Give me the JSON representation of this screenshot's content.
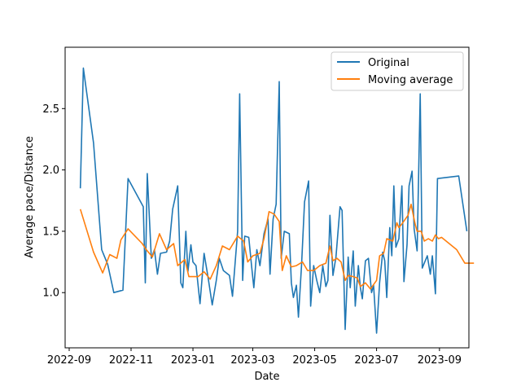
{
  "chart_data": {
    "type": "line",
    "title": "",
    "xlabel": "Date",
    "ylabel": "Average pace/Distance",
    "x_type": "date",
    "xlim": [
      "2022-08-28",
      "2023-09-30"
    ],
    "ylim": [
      0.55,
      3.0
    ],
    "xticks": [
      {
        "date": "2022-09-01",
        "label": "2022-09"
      },
      {
        "date": "2022-11-01",
        "label": "2022-11"
      },
      {
        "date": "2023-01-01",
        "label": "2023-01"
      },
      {
        "date": "2023-03-01",
        "label": "2023-03"
      },
      {
        "date": "2023-05-01",
        "label": "2023-05"
      },
      {
        "date": "2023-07-01",
        "label": "2023-07"
      },
      {
        "date": "2023-09-01",
        "label": "2023-09"
      }
    ],
    "yticks": [
      {
        "value": 1.0,
        "label": "1.0"
      },
      {
        "value": 1.5,
        "label": "1.5"
      },
      {
        "value": 2.0,
        "label": "2.0"
      },
      {
        "value": 2.5,
        "label": "2.5"
      }
    ],
    "grid": false,
    "legend": "top-right",
    "series": [
      {
        "name": "Original",
        "color": "#1f77b4",
        "points": [
          [
            "2022-09-12",
            1.85
          ],
          [
            "2022-09-15",
            2.83
          ],
          [
            "2022-09-25",
            2.22
          ],
          [
            "2022-10-03",
            1.35
          ],
          [
            "2022-10-09",
            1.23
          ],
          [
            "2022-10-15",
            1.0
          ],
          [
            "2022-10-24",
            1.02
          ],
          [
            "2022-10-29",
            1.93
          ],
          [
            "2022-11-13",
            1.7
          ],
          [
            "2022-11-15",
            1.08
          ],
          [
            "2022-11-17",
            1.97
          ],
          [
            "2022-11-21",
            1.28
          ],
          [
            "2022-11-24",
            1.35
          ],
          [
            "2022-11-27",
            1.15
          ],
          [
            "2022-11-30",
            1.32
          ],
          [
            "2022-12-06",
            1.33
          ],
          [
            "2022-12-09",
            1.42
          ],
          [
            "2022-12-12",
            1.68
          ],
          [
            "2022-12-17",
            1.87
          ],
          [
            "2022-12-20",
            1.08
          ],
          [
            "2022-12-22",
            1.04
          ],
          [
            "2022-12-25",
            1.5
          ],
          [
            "2022-12-27",
            1.17
          ],
          [
            "2022-12-30",
            1.39
          ],
          [
            "2023-01-01",
            1.25
          ],
          [
            "2023-01-04",
            1.22
          ],
          [
            "2023-01-08",
            0.91
          ],
          [
            "2023-01-12",
            1.32
          ],
          [
            "2023-01-16",
            1.12
          ],
          [
            "2023-01-20",
            0.9
          ],
          [
            "2023-01-24",
            1.1
          ],
          [
            "2023-01-27",
            1.28
          ],
          [
            "2023-01-31",
            1.18
          ],
          [
            "2023-02-06",
            1.14
          ],
          [
            "2023-02-09",
            0.97
          ],
          [
            "2023-02-14",
            1.5
          ],
          [
            "2023-02-16",
            2.62
          ],
          [
            "2023-02-19",
            1.1
          ],
          [
            "2023-02-21",
            1.46
          ],
          [
            "2023-02-25",
            1.45
          ],
          [
            "2023-02-28",
            1.2
          ],
          [
            "2023-03-02",
            1.04
          ],
          [
            "2023-03-05",
            1.35
          ],
          [
            "2023-03-08",
            1.22
          ],
          [
            "2023-03-12",
            1.48
          ],
          [
            "2023-03-16",
            1.6
          ],
          [
            "2023-03-18",
            1.15
          ],
          [
            "2023-03-21",
            1.6
          ],
          [
            "2023-03-24",
            1.72
          ],
          [
            "2023-03-27",
            2.72
          ],
          [
            "2023-03-29",
            1.28
          ],
          [
            "2023-04-01",
            1.5
          ],
          [
            "2023-04-06",
            1.48
          ],
          [
            "2023-04-08",
            1.08
          ],
          [
            "2023-04-10",
            0.96
          ],
          [
            "2023-04-13",
            1.06
          ],
          [
            "2023-04-15",
            0.8
          ],
          [
            "2023-04-18",
            1.22
          ],
          [
            "2023-04-21",
            1.74
          ],
          [
            "2023-04-25",
            1.91
          ],
          [
            "2023-04-27",
            0.89
          ],
          [
            "2023-04-30",
            1.22
          ],
          [
            "2023-05-03",
            1.1
          ],
          [
            "2023-05-06",
            1.0
          ],
          [
            "2023-05-09",
            1.22
          ],
          [
            "2023-05-12",
            1.05
          ],
          [
            "2023-05-14",
            1.1
          ],
          [
            "2023-05-16",
            1.63
          ],
          [
            "2023-05-19",
            1.14
          ],
          [
            "2023-05-22",
            1.29
          ],
          [
            "2023-05-26",
            1.7
          ],
          [
            "2023-05-28",
            1.67
          ],
          [
            "2023-05-31",
            0.7
          ],
          [
            "2023-06-03",
            1.29
          ],
          [
            "2023-06-05",
            1.04
          ],
          [
            "2023-06-08",
            1.34
          ],
          [
            "2023-06-10",
            0.89
          ],
          [
            "2023-06-13",
            1.22
          ],
          [
            "2023-06-15",
            1.04
          ],
          [
            "2023-06-17",
            0.95
          ],
          [
            "2023-06-20",
            1.26
          ],
          [
            "2023-06-23",
            1.28
          ],
          [
            "2023-06-26",
            1.0
          ],
          [
            "2023-06-28",
            1.06
          ],
          [
            "2023-07-01",
            0.67
          ],
          [
            "2023-07-04",
            1.08
          ],
          [
            "2023-07-07",
            1.33
          ],
          [
            "2023-07-09",
            1.26
          ],
          [
            "2023-07-11",
            0.96
          ],
          [
            "2023-07-14",
            1.53
          ],
          [
            "2023-07-16",
            1.3
          ],
          [
            "2023-07-18",
            1.87
          ],
          [
            "2023-07-20",
            1.37
          ],
          [
            "2023-07-23",
            1.44
          ],
          [
            "2023-07-26",
            1.87
          ],
          [
            "2023-07-28",
            1.09
          ],
          [
            "2023-07-31",
            1.39
          ],
          [
            "2023-08-02",
            1.87
          ],
          [
            "2023-08-05",
            1.99
          ],
          [
            "2023-08-07",
            1.52
          ],
          [
            "2023-08-10",
            1.34
          ],
          [
            "2023-08-13",
            2.62
          ],
          [
            "2023-08-15",
            1.2
          ],
          [
            "2023-08-20",
            1.3
          ],
          [
            "2023-08-23",
            1.15
          ],
          [
            "2023-08-25",
            1.3
          ],
          [
            "2023-08-28",
            0.99
          ],
          [
            "2023-08-30",
            1.93
          ],
          [
            "2023-09-20",
            1.95
          ],
          [
            "2023-09-28",
            1.5
          ]
        ]
      },
      {
        "name": "Moving average",
        "color": "#ff7f0e",
        "points": [
          [
            "2022-09-12",
            1.68
          ],
          [
            "2022-09-25",
            1.33
          ],
          [
            "2022-10-04",
            1.16
          ],
          [
            "2022-10-11",
            1.31
          ],
          [
            "2022-10-18",
            1.28
          ],
          [
            "2022-10-22",
            1.43
          ],
          [
            "2022-10-29",
            1.52
          ],
          [
            "2022-11-12",
            1.4
          ],
          [
            "2022-11-16",
            1.35
          ],
          [
            "2022-11-22",
            1.29
          ],
          [
            "2022-11-29",
            1.48
          ],
          [
            "2022-12-06",
            1.35
          ],
          [
            "2022-12-13",
            1.4
          ],
          [
            "2022-12-17",
            1.22
          ],
          [
            "2022-12-24",
            1.27
          ],
          [
            "2022-12-28",
            1.13
          ],
          [
            "2023-01-06",
            1.13
          ],
          [
            "2023-01-12",
            1.17
          ],
          [
            "2023-01-18",
            1.11
          ],
          [
            "2023-01-24",
            1.22
          ],
          [
            "2023-01-30",
            1.38
          ],
          [
            "2023-02-06",
            1.35
          ],
          [
            "2023-02-14",
            1.46
          ],
          [
            "2023-02-20",
            1.42
          ],
          [
            "2023-02-24",
            1.25
          ],
          [
            "2023-03-01",
            1.3
          ],
          [
            "2023-03-08",
            1.32
          ],
          [
            "2023-03-12",
            1.44
          ],
          [
            "2023-03-17",
            1.66
          ],
          [
            "2023-03-22",
            1.64
          ],
          [
            "2023-03-27",
            1.58
          ],
          [
            "2023-03-30",
            1.18
          ],
          [
            "2023-04-03",
            1.3
          ],
          [
            "2023-04-08",
            1.21
          ],
          [
            "2023-04-13",
            1.22
          ],
          [
            "2023-04-19",
            1.25
          ],
          [
            "2023-04-24",
            1.18
          ],
          [
            "2023-04-30",
            1.18
          ],
          [
            "2023-05-06",
            1.22
          ],
          [
            "2023-05-12",
            1.24
          ],
          [
            "2023-05-16",
            1.38
          ],
          [
            "2023-05-19",
            1.26
          ],
          [
            "2023-05-23",
            1.28
          ],
          [
            "2023-05-27",
            1.25
          ],
          [
            "2023-05-31",
            1.1
          ],
          [
            "2023-06-03",
            1.14
          ],
          [
            "2023-06-08",
            1.13
          ],
          [
            "2023-06-12",
            1.12
          ],
          [
            "2023-06-15",
            1.05
          ],
          [
            "2023-06-20",
            1.08
          ],
          [
            "2023-06-25",
            1.03
          ],
          [
            "2023-07-01",
            1.1
          ],
          [
            "2023-07-04",
            1.3
          ],
          [
            "2023-07-08",
            1.32
          ],
          [
            "2023-07-11",
            1.44
          ],
          [
            "2023-07-14",
            1.43
          ],
          [
            "2023-07-17",
            1.42
          ],
          [
            "2023-07-21",
            1.57
          ],
          [
            "2023-07-23",
            1.53
          ],
          [
            "2023-07-26",
            1.56
          ],
          [
            "2023-08-01",
            1.63
          ],
          [
            "2023-08-04",
            1.72
          ],
          [
            "2023-08-08",
            1.56
          ],
          [
            "2023-08-10",
            1.5
          ],
          [
            "2023-08-14",
            1.5
          ],
          [
            "2023-08-17",
            1.42
          ],
          [
            "2023-08-21",
            1.44
          ],
          [
            "2023-08-25",
            1.42
          ],
          [
            "2023-08-28",
            1.47
          ],
          [
            "2023-08-31",
            1.44
          ],
          [
            "2023-09-03",
            1.45
          ],
          [
            "2023-09-18",
            1.35
          ],
          [
            "2023-09-26",
            1.24
          ],
          [
            "2023-10-05",
            1.24
          ]
        ]
      }
    ]
  }
}
